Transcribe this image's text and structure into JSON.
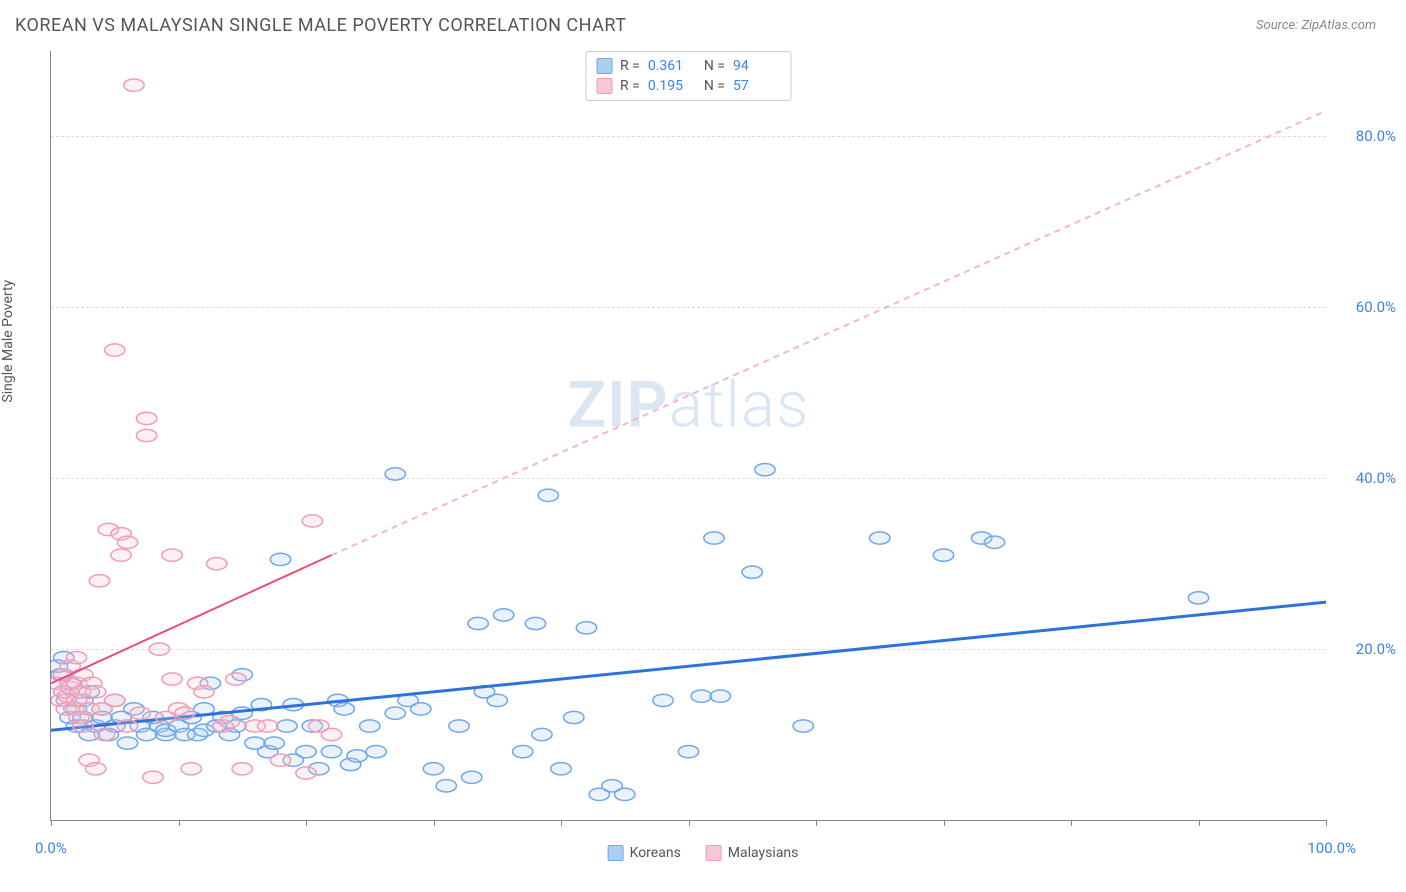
{
  "header": {
    "title": "KOREAN VS MALAYSIAN SINGLE MALE POVERTY CORRELATION CHART",
    "source_prefix": "Source: ",
    "source_name": "ZipAtlas.com"
  },
  "chart": {
    "type": "scatter",
    "y_axis_label": "Single Male Poverty",
    "xlim": [
      0,
      100
    ],
    "ylim": [
      0,
      90
    ],
    "x_tick_positions": [
      0,
      10,
      20,
      30,
      40,
      50,
      60,
      70,
      80,
      90,
      100
    ],
    "x_label_start": "0.0%",
    "x_label_end": "100.0%",
    "y_ticks": [
      {
        "value": 20,
        "label": "20.0%"
      },
      {
        "value": 40,
        "label": "40.0%"
      },
      {
        "value": 60,
        "label": "60.0%"
      },
      {
        "value": 80,
        "label": "80.0%"
      }
    ],
    "grid_color": "#dddddd",
    "background_color": "#ffffff",
    "marker_radius": 8,
    "watermark": {
      "bold": "ZIP",
      "rest": "atlas"
    },
    "series": [
      {
        "id": "koreans",
        "label": "Koreans",
        "color_stroke": "#6ea8e8",
        "color_fill": "#aecdf2",
        "R": "0.361",
        "N": "94",
        "trend": {
          "solid": [
            [
              0,
              10.5
            ],
            [
              100,
              25.5
            ]
          ],
          "line_color": "#2d74da",
          "line_width": 3
        },
        "points": [
          [
            0.5,
            18
          ],
          [
            0.8,
            17
          ],
          [
            1,
            19
          ],
          [
            1,
            15
          ],
          [
            1.2,
            14
          ],
          [
            1.5,
            16
          ],
          [
            1.5,
            12
          ],
          [
            2,
            13
          ],
          [
            2,
            11
          ],
          [
            2.5,
            14
          ],
          [
            2.5,
            12
          ],
          [
            3,
            10
          ],
          [
            3,
            15
          ],
          [
            3.5,
            11
          ],
          [
            4,
            13
          ],
          [
            4,
            12
          ],
          [
            4.5,
            10
          ],
          [
            5,
            11
          ],
          [
            5,
            14
          ],
          [
            5.5,
            12
          ],
          [
            6,
            9
          ],
          [
            6.5,
            13
          ],
          [
            7,
            11
          ],
          [
            7.5,
            10
          ],
          [
            8,
            12
          ],
          [
            8.5,
            11
          ],
          [
            9,
            10
          ],
          [
            9,
            10.5
          ],
          [
            10,
            11
          ],
          [
            10.5,
            10
          ],
          [
            11,
            12
          ],
          [
            11.5,
            10
          ],
          [
            12,
            13
          ],
          [
            12,
            10.5
          ],
          [
            12.5,
            16
          ],
          [
            13,
            11
          ],
          [
            13.5,
            12
          ],
          [
            14,
            10
          ],
          [
            14.5,
            11
          ],
          [
            15,
            12.5
          ],
          [
            15,
            17
          ],
          [
            16,
            9
          ],
          [
            16.5,
            13.5
          ],
          [
            17,
            8
          ],
          [
            17.5,
            9
          ],
          [
            18,
            30.5
          ],
          [
            18.5,
            11
          ],
          [
            19,
            13.5
          ],
          [
            19,
            7
          ],
          [
            20,
            8
          ],
          [
            20.5,
            11
          ],
          [
            21,
            6
          ],
          [
            22,
            8
          ],
          [
            22.5,
            14
          ],
          [
            23,
            13
          ],
          [
            23.5,
            6.5
          ],
          [
            24,
            7.5
          ],
          [
            25,
            11
          ],
          [
            25.5,
            8
          ],
          [
            27,
            40.5
          ],
          [
            27,
            12.5
          ],
          [
            28,
            14
          ],
          [
            29,
            13
          ],
          [
            30,
            6
          ],
          [
            31,
            4
          ],
          [
            32,
            11
          ],
          [
            33,
            5
          ],
          [
            33.5,
            23
          ],
          [
            34,
            15
          ],
          [
            35,
            14
          ],
          [
            35.5,
            24
          ],
          [
            37,
            8
          ],
          [
            38,
            23
          ],
          [
            38.5,
            10
          ],
          [
            39,
            38
          ],
          [
            40,
            6
          ],
          [
            41,
            12
          ],
          [
            42,
            22.5
          ],
          [
            43,
            3
          ],
          [
            44,
            4
          ],
          [
            45,
            3
          ],
          [
            48,
            14
          ],
          [
            50,
            8
          ],
          [
            51,
            14.5
          ],
          [
            52,
            33
          ],
          [
            52.5,
            14.5
          ],
          [
            55,
            29
          ],
          [
            56,
            41
          ],
          [
            59,
            11
          ],
          [
            65,
            33
          ],
          [
            70,
            31
          ],
          [
            73,
            33
          ],
          [
            74,
            32.5
          ],
          [
            90,
            26
          ]
        ]
      },
      {
        "id": "malaysians",
        "label": "Malaysians",
        "color_stroke": "#f29bb4",
        "color_fill": "#f8c7d5",
        "R": "0.195",
        "N": "57",
        "trend": {
          "solid": [
            [
              0,
              16
            ],
            [
              22,
              31
            ]
          ],
          "dashed": [
            [
              22,
              31
            ],
            [
              100,
              83
            ]
          ],
          "line_color": "#e84e7a",
          "dash_color": "#f7b6c8",
          "line_width": 2
        },
        "points": [
          [
            0.5,
            16
          ],
          [
            0.8,
            14
          ],
          [
            1,
            15
          ],
          [
            1,
            17
          ],
          [
            1.2,
            13
          ],
          [
            1.3,
            14.5
          ],
          [
            1.5,
            18
          ],
          [
            1.5,
            15.5
          ],
          [
            1.8,
            13
          ],
          [
            2,
            19
          ],
          [
            2,
            16
          ],
          [
            2,
            14
          ],
          [
            2.2,
            12
          ],
          [
            2.3,
            15
          ],
          [
            2.5,
            17
          ],
          [
            2.5,
            11
          ],
          [
            3,
            13
          ],
          [
            3,
            7
          ],
          [
            3.2,
            16
          ],
          [
            3.5,
            15
          ],
          [
            3.5,
            6
          ],
          [
            3.8,
            28
          ],
          [
            4,
            13
          ],
          [
            4.2,
            10
          ],
          [
            4.5,
            34
          ],
          [
            5,
            55
          ],
          [
            5,
            14
          ],
          [
            5.5,
            31
          ],
          [
            5.5,
            33.5
          ],
          [
            6,
            32.5
          ],
          [
            6,
            11
          ],
          [
            6.5,
            86
          ],
          [
            7,
            12.5
          ],
          [
            7.5,
            45
          ],
          [
            7.5,
            47
          ],
          [
            8,
            5
          ],
          [
            8.5,
            20
          ],
          [
            9,
            12
          ],
          [
            9.5,
            16.5
          ],
          [
            9.5,
            31
          ],
          [
            10,
            13
          ],
          [
            10.5,
            12.5
          ],
          [
            11,
            6
          ],
          [
            11.5,
            16
          ],
          [
            12,
            15
          ],
          [
            13,
            30
          ],
          [
            13.5,
            11
          ],
          [
            14,
            11.5
          ],
          [
            14.5,
            16.5
          ],
          [
            15,
            6
          ],
          [
            16,
            11
          ],
          [
            17,
            11
          ],
          [
            18,
            7
          ],
          [
            20,
            5.5
          ],
          [
            20.5,
            35
          ],
          [
            21,
            11
          ],
          [
            22,
            10
          ]
        ]
      }
    ],
    "bottom_legend": [
      {
        "label": "Koreans",
        "fill": "#aecdf2",
        "stroke": "#6ea8e8"
      },
      {
        "label": "Malaysians",
        "fill": "#f8c7d5",
        "stroke": "#f29bb4"
      }
    ]
  }
}
